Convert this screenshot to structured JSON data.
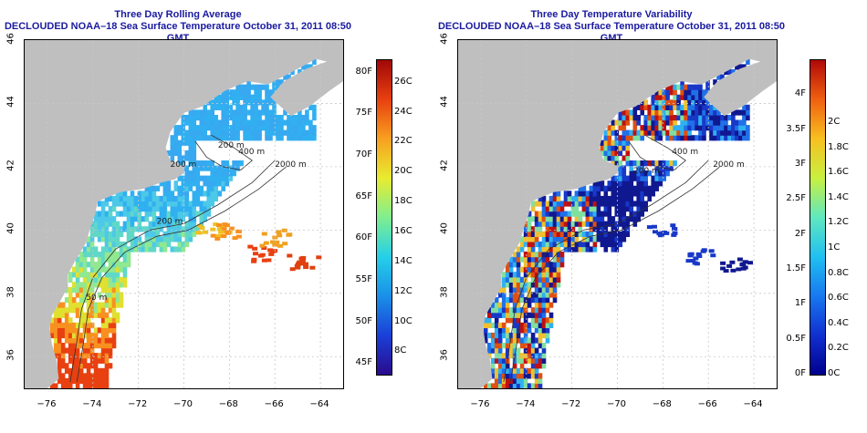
{
  "panels": [
    {
      "title": "Three Day Rolling Average",
      "subtitle": "DECLOUDED NOAA–18 Sea Surface Temperature October 31, 2011 08:50 GMT",
      "colorbar": {
        "gradient": [
          "#2a0a8c",
          "#1a40d8",
          "#1a90e8",
          "#25d0e8",
          "#80ee90",
          "#e8ec30",
          "#f8a020",
          "#e84010",
          "#a00808"
        ],
        "left_labels": [
          "80F",
          "75F",
          "70F",
          "65F",
          "60F",
          "55F",
          "50F",
          "45F"
        ],
        "right_labels": [
          "26C",
          "24C",
          "22C",
          "20C",
          "18C",
          "16C",
          "14C",
          "12C",
          "10C",
          "8C"
        ],
        "left_values_F": [
          80,
          75,
          70,
          65,
          60,
          55,
          50,
          45
        ],
        "right_values_C": [
          26,
          24,
          22,
          20,
          18,
          16,
          14,
          12,
          10,
          8
        ],
        "range_C": [
          6.5,
          27.5
        ]
      },
      "contour_labels": [
        "200 m",
        "2000 m",
        "400 m",
        "200 m",
        "200 m",
        "50 m"
      ],
      "data_colors": [
        "#38a8f0",
        "#30b0f0",
        "#4cc8e8",
        "#60d8c8",
        "#90e890",
        "#e0e030",
        "#f89020",
        "#e84010"
      ]
    },
    {
      "title": "Three Day Temperature Variability",
      "subtitle": "DECLOUDED NOAA–18 Sea Surface Temperature October 31, 2011 08:50 GMT",
      "colorbar": {
        "gradient": [
          "#00008c",
          "#1030d0",
          "#1878f0",
          "#20c0f0",
          "#60e8c0",
          "#c8f040",
          "#f8c020",
          "#f06010",
          "#b00808"
        ],
        "left_labels": [
          "4F",
          "3.5F",
          "3F",
          "2.5F",
          "2F",
          "1.5F",
          "1F",
          "0.5F",
          "0F"
        ],
        "right_labels": [
          "2C",
          "1.8C",
          "1.6C",
          "1.4C",
          "1.2C",
          "1C",
          "0.8C",
          "0.6C",
          "0.4C",
          "0.2C",
          "0C"
        ],
        "left_values_F": [
          4,
          3.5,
          3,
          2.5,
          2,
          1.5,
          1,
          0.5,
          0
        ],
        "right_values_C": [
          2,
          1.8,
          1.6,
          1.4,
          1.2,
          1,
          0.8,
          0.6,
          0.4,
          0.2,
          0
        ],
        "range_C": [
          0,
          2.5
        ]
      },
      "contour_labels": [
        "2000 m",
        "400 m",
        "200 m"
      ],
      "data_colors": [
        "#101890",
        "#1838c8",
        "#2070e8",
        "#30b0f0",
        "#80e0a0",
        "#f0c030",
        "#e05010",
        "#c01010"
      ]
    }
  ],
  "axes": {
    "x_ticks": [
      "−76",
      "−74",
      "−72",
      "−70",
      "−68",
      "−66",
      "−64"
    ],
    "x_values": [
      -76,
      -74,
      -72,
      -70,
      -68,
      -66,
      -64
    ],
    "y_ticks": [
      "36",
      "38",
      "40",
      "42",
      "44",
      "46"
    ],
    "y_values": [
      36,
      38,
      40,
      42,
      44,
      46
    ],
    "xlim": [
      -77,
      -63
    ],
    "ylim": [
      35,
      46
    ]
  },
  "colors": {
    "land": "#bfbfbf",
    "title": "#1a1aa0",
    "grid": "#c8c8c8"
  }
}
